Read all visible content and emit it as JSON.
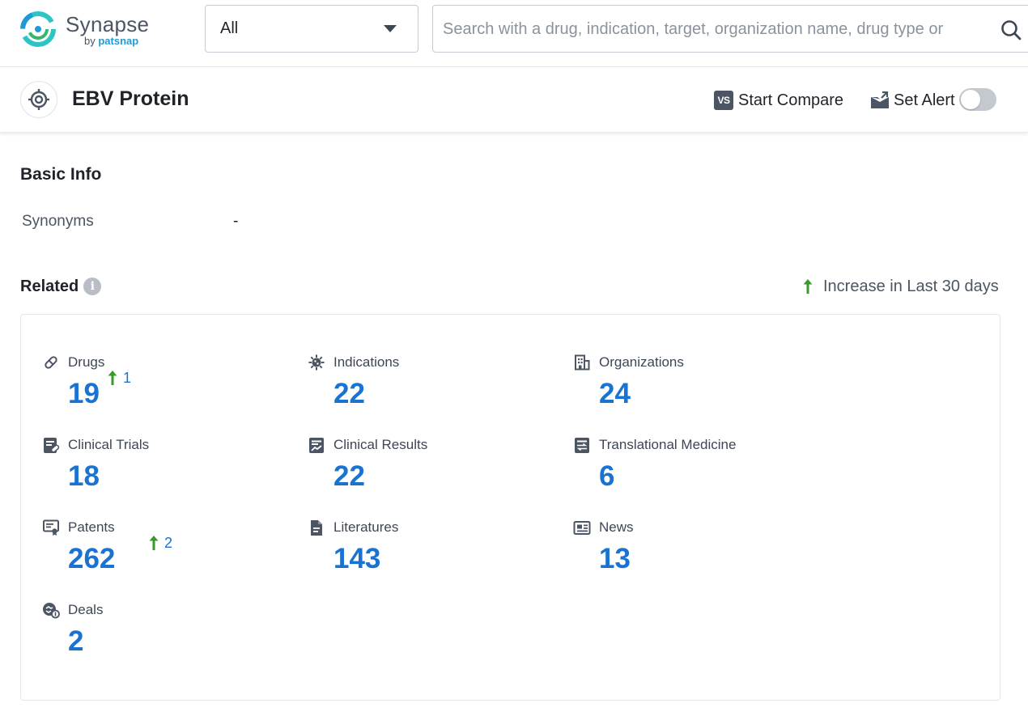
{
  "app": {
    "logo": {
      "title": "Synapse",
      "by": "by",
      "brand": "patsnap"
    }
  },
  "header": {
    "scope_select": {
      "value": "All"
    },
    "search": {
      "placeholder": "Search with a drug, indication, target, organization name, drug type or"
    }
  },
  "entity": {
    "title": "EBV Protein",
    "compare": {
      "badge": "VS",
      "label": "Start Compare"
    },
    "alert": {
      "label": "Set Alert",
      "enabled": false
    }
  },
  "basic_info": {
    "title": "Basic Info",
    "synonyms_label": "Synonyms",
    "synonyms_value": "-"
  },
  "related": {
    "title": "Related",
    "legend": "Increase in Last 30 days",
    "colors": {
      "value": "#1a73d1",
      "increase": "#3a9b2c",
      "icon": "#4b5563"
    },
    "items": [
      {
        "label": "Drugs",
        "value": "19",
        "delta": "1",
        "icon": "pill-icon"
      },
      {
        "label": "Indications",
        "value": "22",
        "delta": null,
        "icon": "virus-icon"
      },
      {
        "label": "Organizations",
        "value": "24",
        "delta": null,
        "icon": "building-icon"
      },
      {
        "label": "Clinical Trials",
        "value": "18",
        "delta": null,
        "icon": "clipboard-pill-icon"
      },
      {
        "label": "Clinical Results",
        "value": "22",
        "delta": null,
        "icon": "chart-document-icon"
      },
      {
        "label": "Translational Medicine",
        "value": "6",
        "delta": null,
        "icon": "exchange-document-icon"
      },
      {
        "label": "Patents",
        "value": "262",
        "delta": "2",
        "icon": "certificate-icon"
      },
      {
        "label": "Literatures",
        "value": "143",
        "delta": null,
        "icon": "document-icon"
      },
      {
        "label": "News",
        "value": "13",
        "delta": null,
        "icon": "newspaper-icon"
      },
      {
        "label": "Deals",
        "value": "2",
        "delta": null,
        "icon": "handshake-coin-icon"
      }
    ]
  }
}
